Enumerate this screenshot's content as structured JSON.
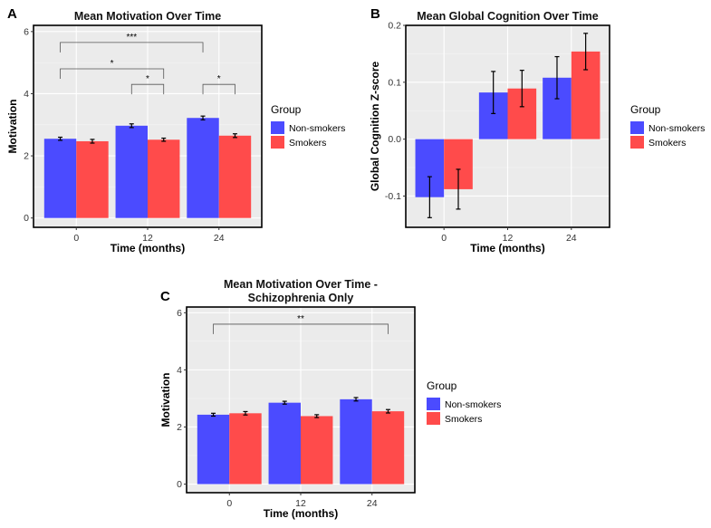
{
  "chart_data": [
    {
      "id": "A",
      "type": "bar",
      "panel_letter": "A",
      "title": [
        "Mean Motivation Over Time"
      ],
      "xlabel": "Time (months)",
      "ylabel": "Motivation",
      "categories": [
        "0",
        "12",
        "24"
      ],
      "ylim": [
        -0.3,
        6.2
      ],
      "yticks": [
        0,
        2,
        4,
        6
      ],
      "series": [
        {
          "name": "Non-smokers",
          "color": "#4B4BFF",
          "values": [
            2.55,
            2.97,
            3.22
          ],
          "errors": [
            0.05,
            0.06,
            0.06
          ]
        },
        {
          "name": "Smokers",
          "color": "#FF4B4B",
          "values": [
            2.47,
            2.52,
            2.65
          ],
          "errors": [
            0.06,
            0.05,
            0.06
          ]
        }
      ],
      "legend": {
        "title": "Group",
        "position": "right"
      },
      "significance": [
        {
          "from": "Non-smokers@0",
          "to": "Non-smokers@24",
          "y": 5.65,
          "label": "***"
        },
        {
          "from": "Non-smokers@0",
          "to": "Smokers@12",
          "y": 4.8,
          "label": "*"
        },
        {
          "from": "Non-smokers@12",
          "to": "Smokers@12",
          "y": 4.3,
          "label": "*"
        },
        {
          "from": "Non-smokers@24",
          "to": "Smokers@24",
          "y": 4.3,
          "label": "*"
        }
      ]
    },
    {
      "id": "B",
      "type": "bar",
      "panel_letter": "B",
      "title": [
        "Mean Global Cognition Over Time"
      ],
      "xlabel": "Time (months)",
      "ylabel": "Global Cognition Z-score",
      "categories": [
        "0",
        "12",
        "24"
      ],
      "ylim": [
        -0.155,
        0.2
      ],
      "yticks": [
        -0.1,
        0.0,
        0.1,
        0.2
      ],
      "ytick_labels": [
        "-0.1",
        "0.0",
        "0.1",
        "0.2"
      ],
      "series": [
        {
          "name": "Non-smokers",
          "color": "#4B4BFF",
          "values": [
            -0.102,
            0.082,
            0.108
          ],
          "errors": [
            0.036,
            0.037,
            0.037
          ]
        },
        {
          "name": "Smokers",
          "color": "#FF4B4B",
          "values": [
            -0.088,
            0.089,
            0.154
          ],
          "errors": [
            0.035,
            0.032,
            0.032
          ]
        }
      ],
      "legend": {
        "title": "Group",
        "position": "right"
      },
      "significance": []
    },
    {
      "id": "C",
      "type": "bar",
      "panel_letter": "C",
      "title": [
        "Mean Motivation Over Time -",
        "Schizophrenia Only"
      ],
      "xlabel": "Time (months)",
      "ylabel": "Motivation",
      "categories": [
        "0",
        "12",
        "24"
      ],
      "ylim": [
        -0.3,
        6.2
      ],
      "yticks": [
        0,
        2,
        4,
        6
      ],
      "series": [
        {
          "name": "Non-smokers",
          "color": "#4B4BFF",
          "values": [
            2.43,
            2.85,
            2.97
          ],
          "errors": [
            0.05,
            0.05,
            0.06
          ]
        },
        {
          "name": "Smokers",
          "color": "#FF4B4B",
          "values": [
            2.48,
            2.38,
            2.55
          ],
          "errors": [
            0.06,
            0.05,
            0.06
          ]
        }
      ],
      "legend": {
        "title": "Group",
        "position": "right"
      },
      "significance": [
        {
          "from": "Non-smokers@0",
          "to": "Smokers@24",
          "y": 5.6,
          "label": "**"
        }
      ]
    }
  ]
}
